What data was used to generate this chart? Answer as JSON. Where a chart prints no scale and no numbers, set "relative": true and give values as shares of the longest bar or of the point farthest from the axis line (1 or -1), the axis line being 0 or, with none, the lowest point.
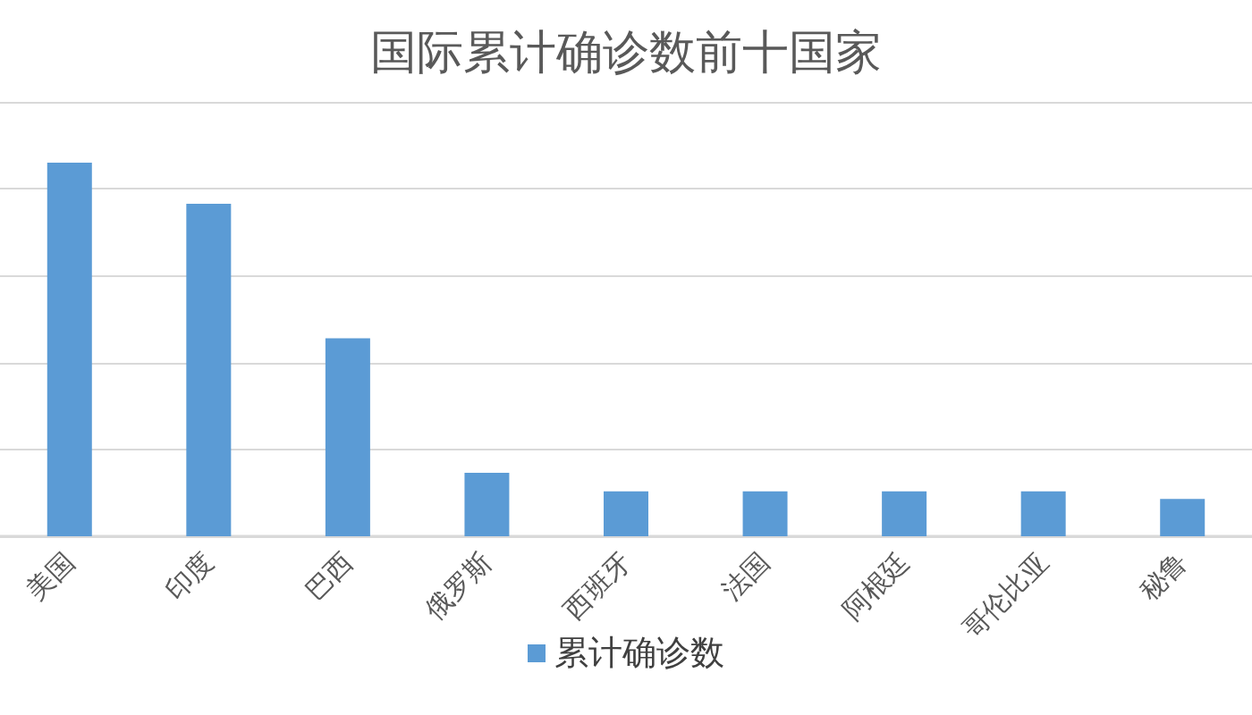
{
  "chart_data": {
    "type": "bar",
    "title": "国际累计确诊数前十国家",
    "categories": [
      "美国",
      "印度",
      "巴西",
      "俄罗斯",
      "西班牙",
      "法国",
      "阿根廷",
      "哥伦比亚",
      "秘鲁"
    ],
    "series": [
      {
        "name": "累计确诊数",
        "color": "#5b9bd5",
        "values": [
          1,
          0.89,
          0.53,
          0.17,
          0.12,
          0.12,
          0.12,
          0.12,
          0.1
        ]
      }
    ],
    "relative": true,
    "grid": "y",
    "legend": "bottom"
  }
}
